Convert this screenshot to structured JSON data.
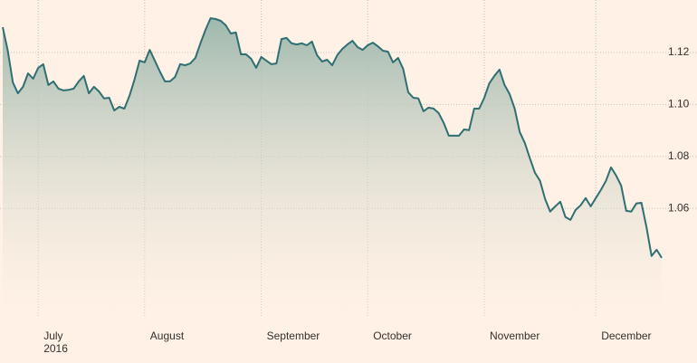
{
  "chart_data": {
    "type": "area",
    "categories": [
      null,
      null,
      null,
      null,
      null,
      null,
      null,
      "July",
      null,
      null,
      null,
      null,
      null,
      null,
      null,
      null,
      null,
      null,
      null,
      null,
      null,
      null,
      null,
      null,
      null,
      null,
      null,
      null,
      "August",
      null,
      null,
      null,
      null,
      null,
      null,
      null,
      null,
      null,
      null,
      null,
      null,
      null,
      null,
      null,
      null,
      null,
      null,
      null,
      null,
      null,
      null,
      "September",
      null,
      null,
      null,
      null,
      null,
      null,
      null,
      null,
      null,
      null,
      null,
      null,
      null,
      null,
      null,
      null,
      null,
      null,
      null,
      null,
      "October",
      null,
      null,
      null,
      null,
      null,
      null,
      null,
      null,
      null,
      null,
      null,
      null,
      null,
      null,
      null,
      null,
      null,
      null,
      null,
      null,
      null,
      null,
      "November",
      null,
      null,
      null,
      null,
      null,
      null,
      null,
      null,
      null,
      null,
      null,
      null,
      null,
      null,
      null,
      null,
      null,
      null,
      null,
      null,
      null,
      "December",
      null,
      null,
      null,
      null,
      null,
      null,
      null,
      null,
      null,
      null,
      null,
      null,
      null
    ],
    "year_label": "2016",
    "values": [
      1.1297,
      1.1207,
      1.1085,
      1.1043,
      1.1068,
      1.112,
      1.1099,
      1.1141,
      1.1155,
      1.1075,
      1.1089,
      1.1061,
      1.1054,
      1.1056,
      1.1061,
      1.1089,
      1.111,
      1.1043,
      1.1068,
      1.105,
      1.1023,
      1.1026,
      1.0977,
      1.0991,
      1.0984,
      1.1033,
      1.1096,
      1.1169,
      1.1162,
      1.121,
      1.1169,
      1.1127,
      1.1089,
      1.1089,
      1.1106,
      1.1155,
      1.1151,
      1.1158,
      1.1179,
      1.1235,
      1.1287,
      1.1332,
      1.1329,
      1.1322,
      1.1305,
      1.1273,
      1.1277,
      1.1193,
      1.1193,
      1.1176,
      1.1141,
      1.1183,
      1.1169,
      1.1155,
      1.1158,
      1.1252,
      1.1256,
      1.1235,
      1.1231,
      1.1235,
      1.1228,
      1.1242,
      1.119,
      1.1165,
      1.1172,
      1.1151,
      1.119,
      1.1214,
      1.1231,
      1.1245,
      1.1221,
      1.121,
      1.1228,
      1.1238,
      1.1224,
      1.1207,
      1.1203,
      1.1162,
      1.1179,
      1.1137,
      1.1047,
      1.1026,
      1.1023,
      1.0974,
      1.0988,
      1.0984,
      1.0967,
      1.0929,
      1.088,
      1.088,
      1.088,
      1.0904,
      1.0901,
      1.0984,
      1.0984,
      1.1026,
      1.1082,
      1.111,
      1.1134,
      1.1075,
      1.104,
      1.0984,
      1.0894,
      1.0852,
      1.0793,
      1.0737,
      1.0706,
      1.0636,
      1.0588,
      1.0608,
      1.0626,
      1.0567,
      1.0556,
      1.0594,
      1.0612,
      1.064,
      1.0608,
      1.064,
      1.0671,
      1.0706,
      1.0758,
      1.0727,
      1.0688,
      1.0591,
      1.0588,
      1.0619,
      1.0622,
      1.0528,
      1.0417,
      1.0441,
      1.041
    ],
    "color": "#2f6f73",
    "ylim": [
      1.0183,
      1.1402
    ],
    "yticks": [
      1.06,
      1.08,
      {
        "value": 1.1,
        "label": "1.10"
      },
      1.12
    ],
    "grid": true
  }
}
